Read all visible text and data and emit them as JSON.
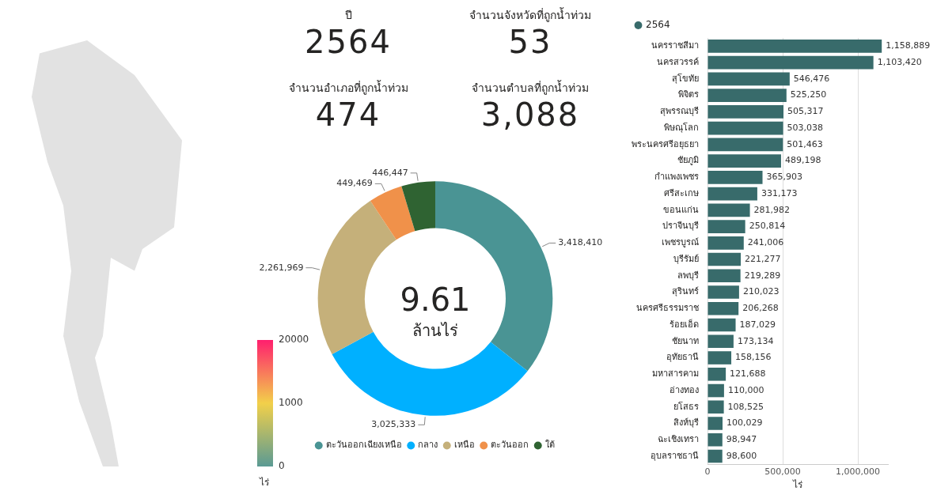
{
  "chart_data": [
    {
      "type": "other",
      "clabel": "ไร่",
      "annotations": [
        "20000",
        "1000",
        "0"
      ],
      "colors": [
        "#5a9a94",
        "#f2d04a",
        "#ff1f6e"
      ]
    },
    {
      "type": "other",
      "annotations": [
        "ปี",
        "2564",
        "จำนวนจังหวัดที่ถูกน้ำท่วม",
        "53",
        "จำนวนอำเภอที่ถูกน้ำท่วม",
        "474",
        "จำนวนตำบลที่ถูกน้ำท่วม",
        "3,088"
      ]
    },
    {
      "type": "donut",
      "categories": [
        "ตะวันออกเฉียงเหนือ",
        "กลาง",
        "เหนือ",
        "ตะวันออก",
        "ใต้"
      ],
      "values": [
        3418410,
        3025333,
        2261969,
        449469,
        446447
      ],
      "value_labels": [
        "3,418,410",
        "3,025,333",
        "2,261,969",
        "449,469",
        "446,447"
      ],
      "colors": [
        "#4a9494",
        "#00b0ff",
        "#c5b07a",
        "#f0914a",
        "#2f6332"
      ],
      "legend": "bottom",
      "annotations": [
        "9.61",
        "ล้านไร่"
      ]
    },
    {
      "type": "bar",
      "orientation": "horizontal",
      "categories": [
        "นครราชสีมา",
        "นครสวรรค์",
        "สุโขทัย",
        "พิจิตร",
        "สุพรรณบุรี",
        "พิษณุโลก",
        "พระนครศรีอยุธยา",
        "ชัยภูมิ",
        "กำแพงเพชร",
        "ศรีสะเกษ",
        "ขอนแก่น",
        "ปราจีนบุรี",
        "เพชรบูรณ์",
        "บุรีรัมย์",
        "ลพบุรี",
        "สุรินทร์",
        "นครศรีธรรมราช",
        "ร้อยเอ็ด",
        "ชัยนาท",
        "อุทัยธานี",
        "มหาสารคาม",
        "อ่างทอง",
        "ยโสธร",
        "สิงห์บุรี",
        "ฉะเชิงเทรา",
        "อุบลราชธานี"
      ],
      "series": [
        {
          "name": "2564",
          "color": "#386b6b",
          "values": [
            1158889,
            1103420,
            546476,
            525250,
            505317,
            503038,
            501463,
            489198,
            365903,
            331173,
            281982,
            250814,
            241006,
            221277,
            219289,
            210023,
            206268,
            187029,
            173134,
            158156,
            121688,
            110000,
            108525,
            100029,
            98947,
            98600
          ],
          "value_labels": [
            "1,158,889",
            "1,103,420",
            "546,476",
            "525,250",
            "505,317",
            "503,038",
            "501,463",
            "489,198",
            "365,903",
            "331,173",
            "281,982",
            "250,814",
            "241,006",
            "221,277",
            "219,289",
            "210,023",
            "206,268",
            "187,029",
            "173,134",
            "158,156",
            "121,688",
            "110,000",
            "108,525",
            "100,029",
            "98,947",
            "98,600"
          ]
        }
      ],
      "xlim": [
        0,
        1200000
      ],
      "xticks": [
        {
          "value": 0,
          "label": "0"
        },
        {
          "value": 500000,
          "label": "500,000"
        },
        {
          "value": 1000000,
          "label": "1,000,000"
        }
      ],
      "xlabel": "ไร่",
      "grid": "x",
      "legend": "top left"
    }
  ]
}
